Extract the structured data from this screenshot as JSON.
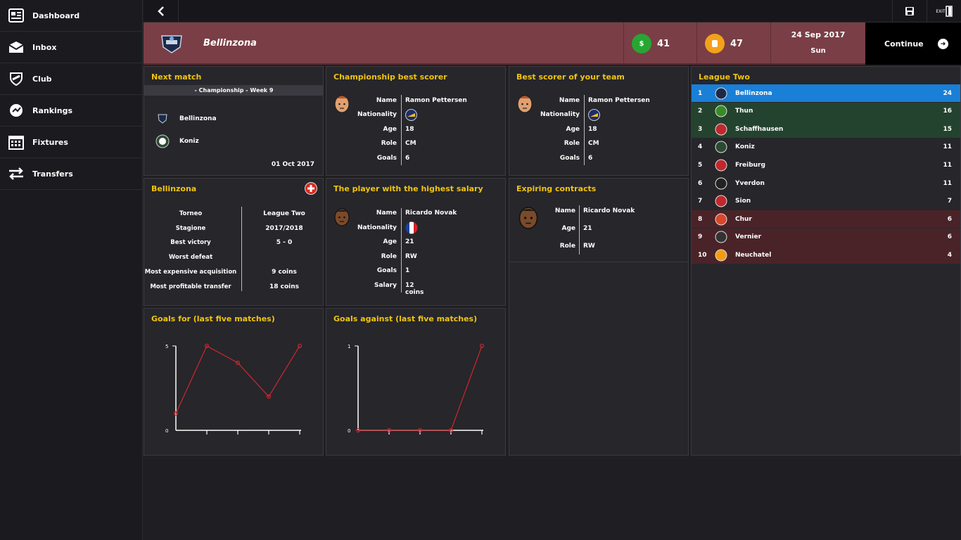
{
  "sidebar": {
    "items": [
      {
        "label": "Dashboard",
        "icon": "dashboard-icon"
      },
      {
        "label": "Inbox",
        "icon": "inbox-icon"
      },
      {
        "label": "Club",
        "icon": "club-icon"
      },
      {
        "label": "Rankings",
        "icon": "rankings-icon"
      },
      {
        "label": "Fixtures",
        "icon": "calendar-icon"
      },
      {
        "label": "Transfers",
        "icon": "transfers-icon"
      }
    ]
  },
  "topbar": {
    "exit_label": "EXIT"
  },
  "club": {
    "name": "Bellinzona",
    "money": "41",
    "coins": "47",
    "money_symbol": "$",
    "date": "24 Sep 2017",
    "weekday": "Sun",
    "continue_label": "Continue"
  },
  "next_match": {
    "title": "Next match",
    "competition": "- Championship - Week 9",
    "home": "Bellinzona",
    "away": "Koniz",
    "date": "01 Oct 2017"
  },
  "champ_scorer": {
    "title": "Championship best scorer",
    "labels": {
      "name": "Name",
      "nationality": "Nationality",
      "age": "Age",
      "role": "Role",
      "goals": "Goals"
    },
    "name": "Ramon Pettersen",
    "age": "18",
    "role": "CM",
    "goals": "6"
  },
  "team_scorer": {
    "title": "Best scorer of your team",
    "labels": {
      "name": "Name",
      "nationality": "Nationality",
      "age": "Age",
      "role": "Role",
      "goals": "Goals"
    },
    "name": "Ramon Pettersen",
    "age": "18",
    "role": "CM",
    "goals": "6"
  },
  "club_info": {
    "title": "Bellinzona",
    "rows": [
      {
        "k": "Torneo",
        "v": "League Two"
      },
      {
        "k": "Stagione",
        "v": "2017/2018"
      },
      {
        "k": "Best victory",
        "v": "5 - 0"
      },
      {
        "k": "Worst defeat",
        "v": ""
      },
      {
        "k": "Most expensive acquisition",
        "v": "9 coins"
      },
      {
        "k": "Most profitable transfer",
        "v": "18 coins"
      }
    ]
  },
  "salary": {
    "title": "The player with the highest salary",
    "labels": {
      "name": "Name",
      "nationality": "Nationality",
      "age": "Age",
      "role": "Role",
      "goals": "Goals",
      "salary": "Salary"
    },
    "name": "Ricardo Novak",
    "age": "21",
    "role": "RW",
    "goals": "1",
    "salary": "12 coins"
  },
  "expiring": {
    "title": "Expiring contracts",
    "labels": {
      "name": "Name",
      "age": "Age",
      "role": "Role"
    },
    "name": "Ricardo Novak",
    "age": "21",
    "role": "RW"
  },
  "league": {
    "title": "League Two",
    "rows": [
      {
        "pos": "1",
        "team": "Bellinzona",
        "pts": "24",
        "bg": "#1a7fd6"
      },
      {
        "pos": "2",
        "team": "Thun",
        "pts": "16",
        "bg": "#24432f"
      },
      {
        "pos": "3",
        "team": "Schaffhausen",
        "pts": "15",
        "bg": "#24432f"
      },
      {
        "pos": "4",
        "team": "Koniz",
        "pts": "11",
        "bg": "#26262b"
      },
      {
        "pos": "5",
        "team": "Freiburg",
        "pts": "11",
        "bg": "#26262b"
      },
      {
        "pos": "6",
        "team": "Yverdon",
        "pts": "11",
        "bg": "#26262b"
      },
      {
        "pos": "7",
        "team": "Sion",
        "pts": "7",
        "bg": "#26262b"
      },
      {
        "pos": "8",
        "team": "Chur",
        "pts": "6",
        "bg": "#4a2328"
      },
      {
        "pos": "9",
        "team": "Vernier",
        "pts": "6",
        "bg": "#4a2328"
      },
      {
        "pos": "10",
        "team": "Neuchatel",
        "pts": "4",
        "bg": "#4a2328"
      }
    ]
  },
  "chart_data": [
    {
      "type": "line",
      "title": "Goals for (last five matches)",
      "x": [
        1,
        2,
        3,
        4,
        5
      ],
      "values": [
        1,
        5,
        4,
        2,
        5
      ],
      "ylim": [
        0,
        5
      ],
      "yticks": [
        "5",
        "0"
      ],
      "color": "#c0282d"
    },
    {
      "type": "line",
      "title": "Goals against (last five matches)",
      "x": [
        1,
        2,
        3,
        4,
        5
      ],
      "values": [
        0,
        0,
        0,
        0,
        1
      ],
      "ylim": [
        0,
        1
      ],
      "yticks": [
        "1",
        "0"
      ],
      "color": "#c0282d"
    }
  ],
  "colors": {
    "accent": "#f1c40f",
    "header_bg": "#7a3e46",
    "money_green": "#27a633",
    "coin_orange": "#f3a11b",
    "selected_row": "#1a7fd6"
  }
}
